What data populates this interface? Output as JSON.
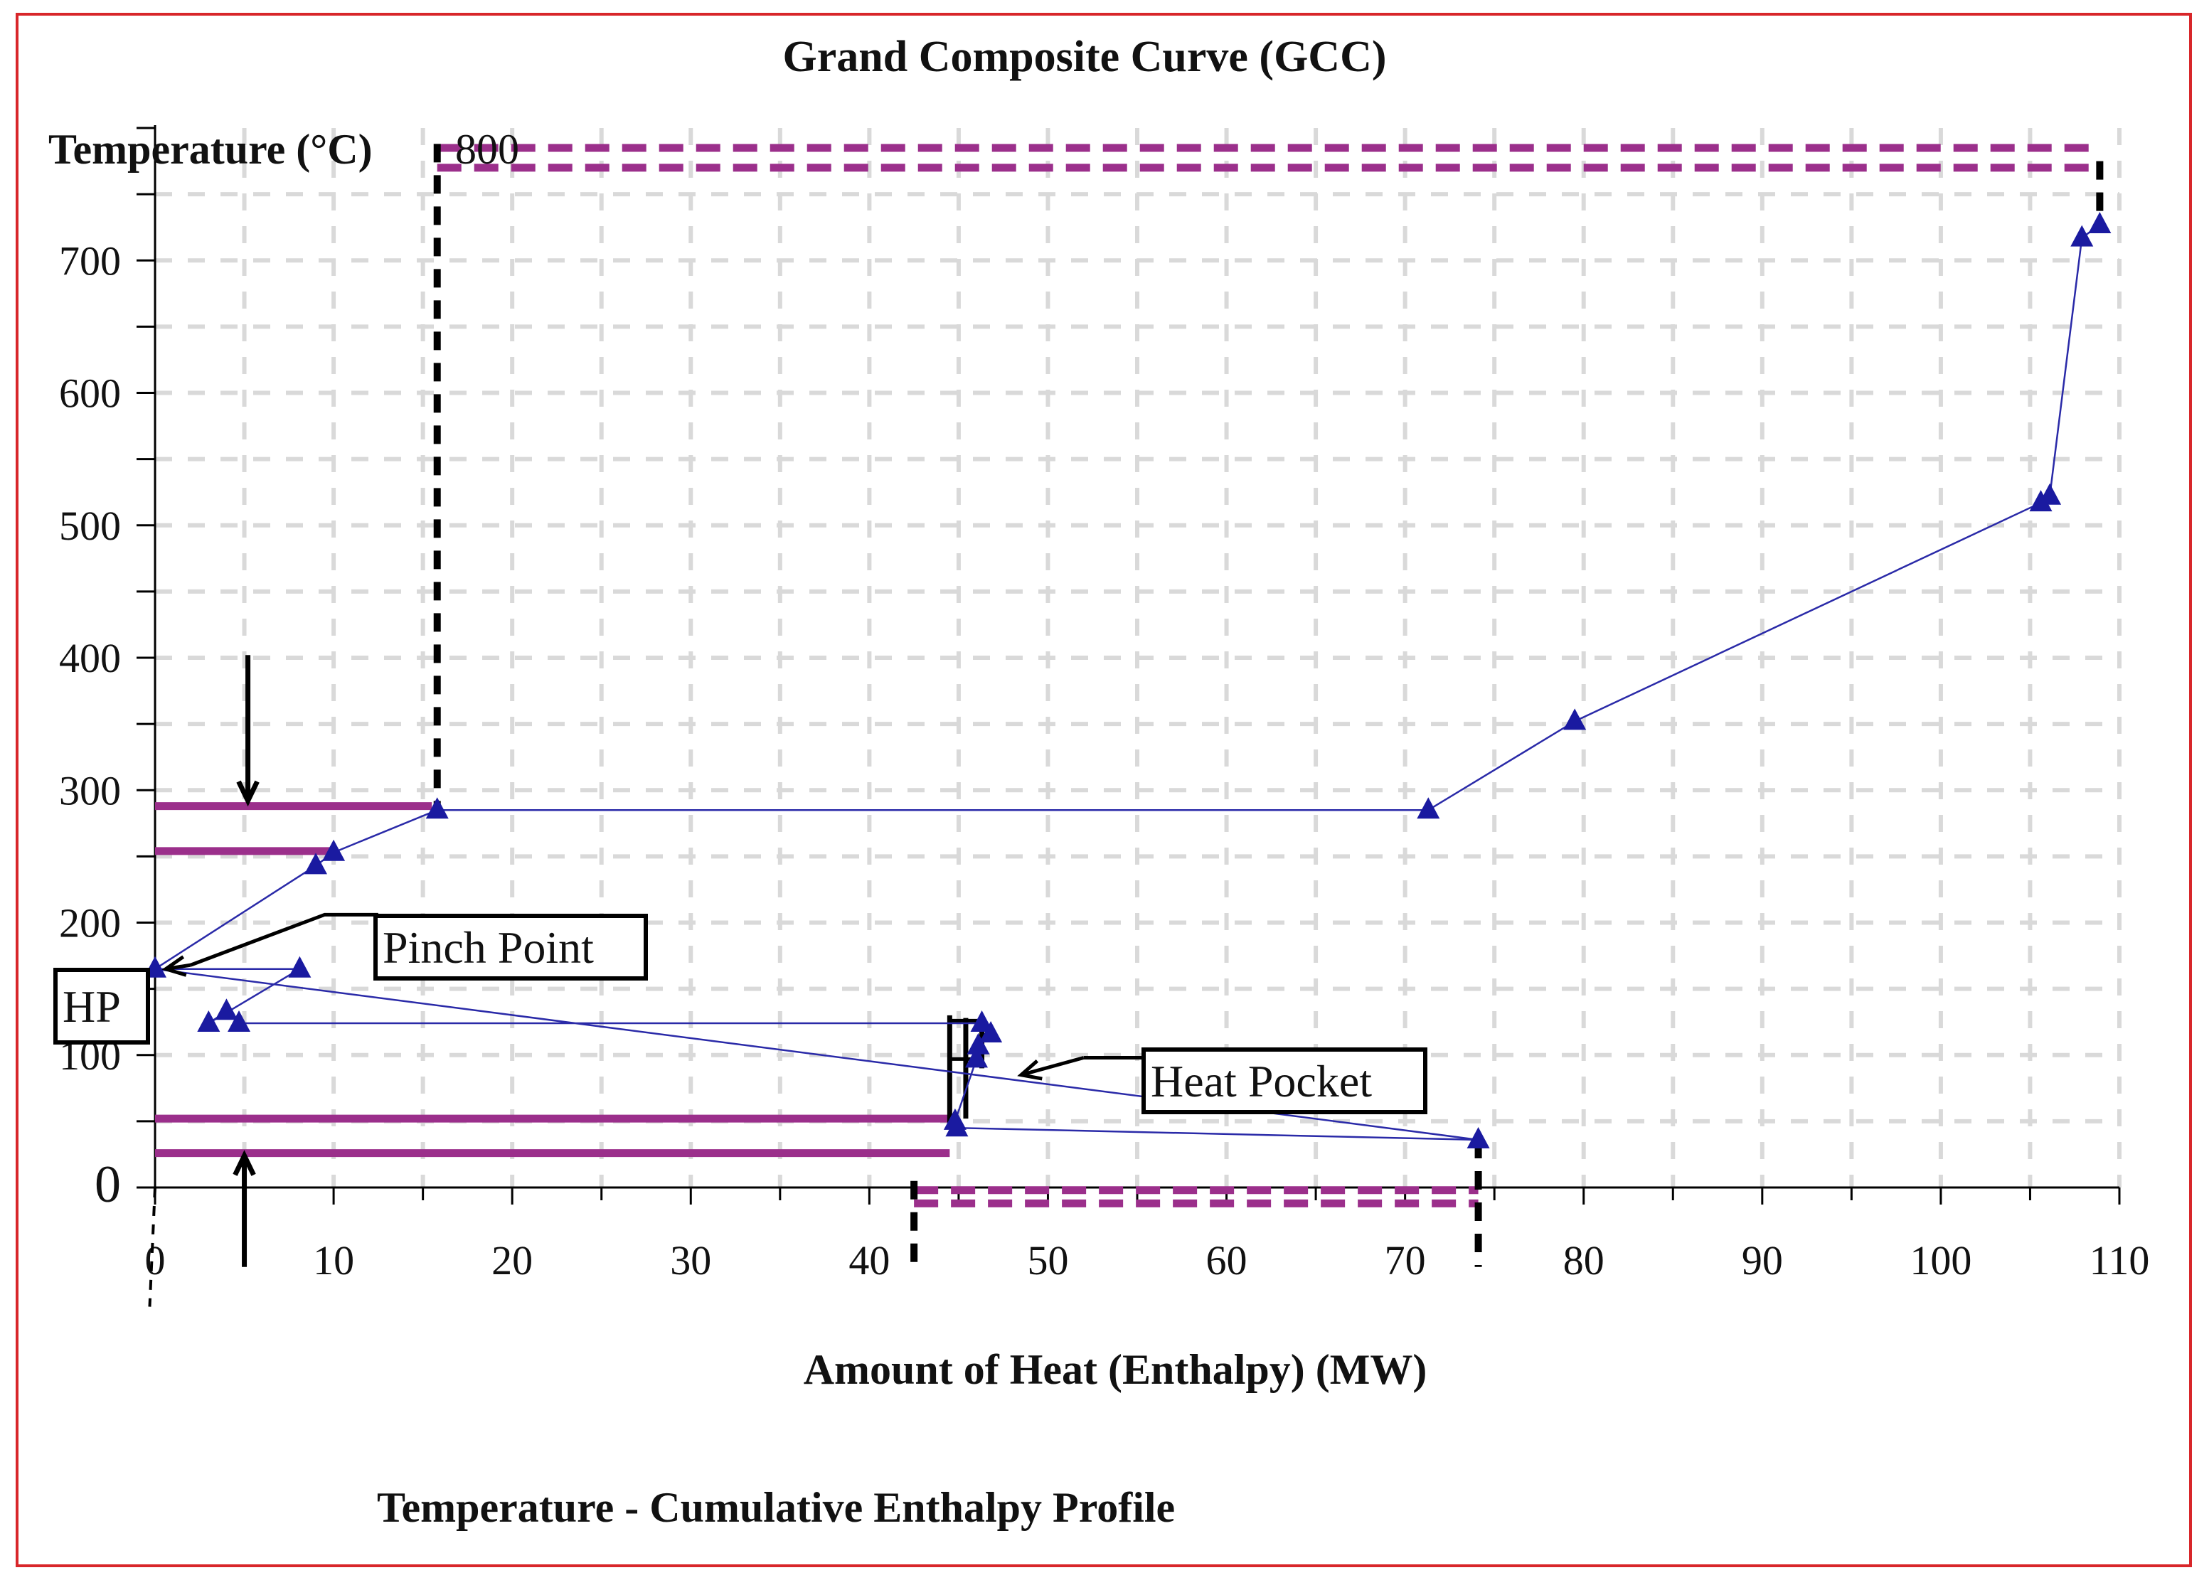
{
  "chart_data": {
    "type": "line",
    "title": "Grand Composite Curve (GCC)",
    "subtitle": "Temperature - Cumulative Enthalpy Profile",
    "ylabel": "Temperature (°C)",
    "ylabel_max": "800",
    "xlabel": "Amount of Heat (Enthalpy) (MW)",
    "x_ticks": [
      "0",
      "10",
      "20",
      "30",
      "40",
      "50",
      "60",
      "70",
      "80",
      "90",
      "100",
      "110"
    ],
    "y_ticks": [
      "0",
      "100",
      "200",
      "300",
      "400",
      "500",
      "600",
      "700"
    ],
    "xlim": [
      0,
      110
    ],
    "ylim": [
      0,
      800
    ],
    "grid": true,
    "colors": {
      "curve": "#2a2aa8",
      "marker": "#1a1aa0",
      "utility": "#9b2f8b",
      "grid": "#d9d9d9",
      "frame": "#d8262a",
      "axis": "#000000"
    },
    "series": [
      {
        "name": "GCC",
        "x": [
          0,
          8.1,
          3.0,
          4.0,
          4.7,
          46.3,
          46.8,
          46.1,
          46.0,
          44.8,
          44.9,
          74.1,
          0,
          9.0,
          10.0,
          15.8,
          71.3,
          79.5,
          105.6,
          106.1,
          107.9,
          108.9
        ],
        "y": [
          165,
          165,
          124,
          133,
          124,
          124,
          116,
          107,
          97,
          50,
          45,
          36,
          165,
          243,
          253,
          285,
          285,
          352,
          517,
          522,
          717,
          727
        ]
      }
    ],
    "utilities": [
      {
        "name": "hot-utility-top",
        "style": "dashed",
        "x": [
          15.8,
          108.9
        ],
        "y": 785
      },
      {
        "name": "hot-utility-bottom",
        "style": "dashed",
        "x": [
          15.8,
          108.9
        ],
        "y": 770
      },
      {
        "name": "intermediate-upper",
        "style": "solid",
        "x": [
          0,
          15.5
        ],
        "y": 288
      },
      {
        "name": "intermediate-lower",
        "style": "solid",
        "x": [
          0,
          10.0
        ],
        "y": 254
      },
      {
        "name": "cold-upper",
        "style": "solid",
        "x": [
          0,
          44.5
        ],
        "y": 52
      },
      {
        "name": "cold-lower",
        "style": "solid",
        "x": [
          0,
          44.5
        ],
        "y": 26
      },
      {
        "name": "cold-utility-top",
        "style": "dashed",
        "x": [
          42.5,
          74.1
        ],
        "y": -2
      },
      {
        "name": "cold-utility-bottom",
        "style": "dashed",
        "x": [
          42.5,
          74.1
        ],
        "y": -12
      }
    ],
    "annotations": {
      "pinch_point": "Pinch Point",
      "hp": "HP",
      "heat_pocket": "Heat Pocket"
    }
  }
}
